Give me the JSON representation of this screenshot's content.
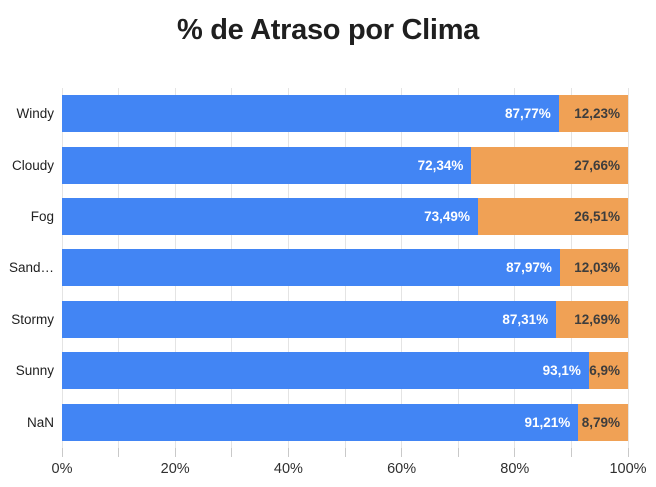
{
  "page": {
    "background": "#FFFFFF"
  },
  "chart_data": {
    "type": "bar",
    "orientation": "horizontal",
    "stacked": true,
    "stack_total": 100,
    "title": "% de Atraso por Clima",
    "categories": [
      "Windy",
      "Cloudy",
      "Fog",
      "Sand…",
      "Stormy",
      "Sunny",
      "NaN"
    ],
    "series": [
      {
        "name": "blue",
        "color": "#4285F4",
        "label_color": "#FFFFFF",
        "values": [
          87.77,
          72.34,
          73.49,
          87.97,
          87.31,
          93.1,
          91.21
        ],
        "labels": [
          "87,77%",
          "72,34%",
          "73,49%",
          "87,97%",
          "87,31%",
          "93,1%",
          "91,21%"
        ]
      },
      {
        "name": "orange",
        "color": "#F0A155",
        "label_color": "#3D3D3D",
        "values": [
          12.23,
          27.66,
          26.51,
          12.03,
          12.69,
          6.9,
          8.79
        ],
        "labels": [
          "12,23%",
          "27,66%",
          "26,51%",
          "12,03%",
          "12,69%",
          "6,9%",
          "8,79%"
        ]
      }
    ],
    "xlim": [
      0,
      100
    ],
    "x_tick_labels": [
      "0%",
      "20%",
      "40%",
      "60%",
      "80%",
      "100%"
    ],
    "x_tick_label_positions": [
      0,
      20,
      40,
      60,
      80,
      100
    ],
    "minor_tick_step": 10,
    "grid": "vertical minor gridlines every 10%",
    "legend": "none"
  },
  "style": {
    "grid_color": "#E4E4E4",
    "tick_color": "#C9C9C9",
    "axis_label_color": "#2F2F2F",
    "category_label_color": "#212121",
    "title_color": "#1F1F1F"
  }
}
